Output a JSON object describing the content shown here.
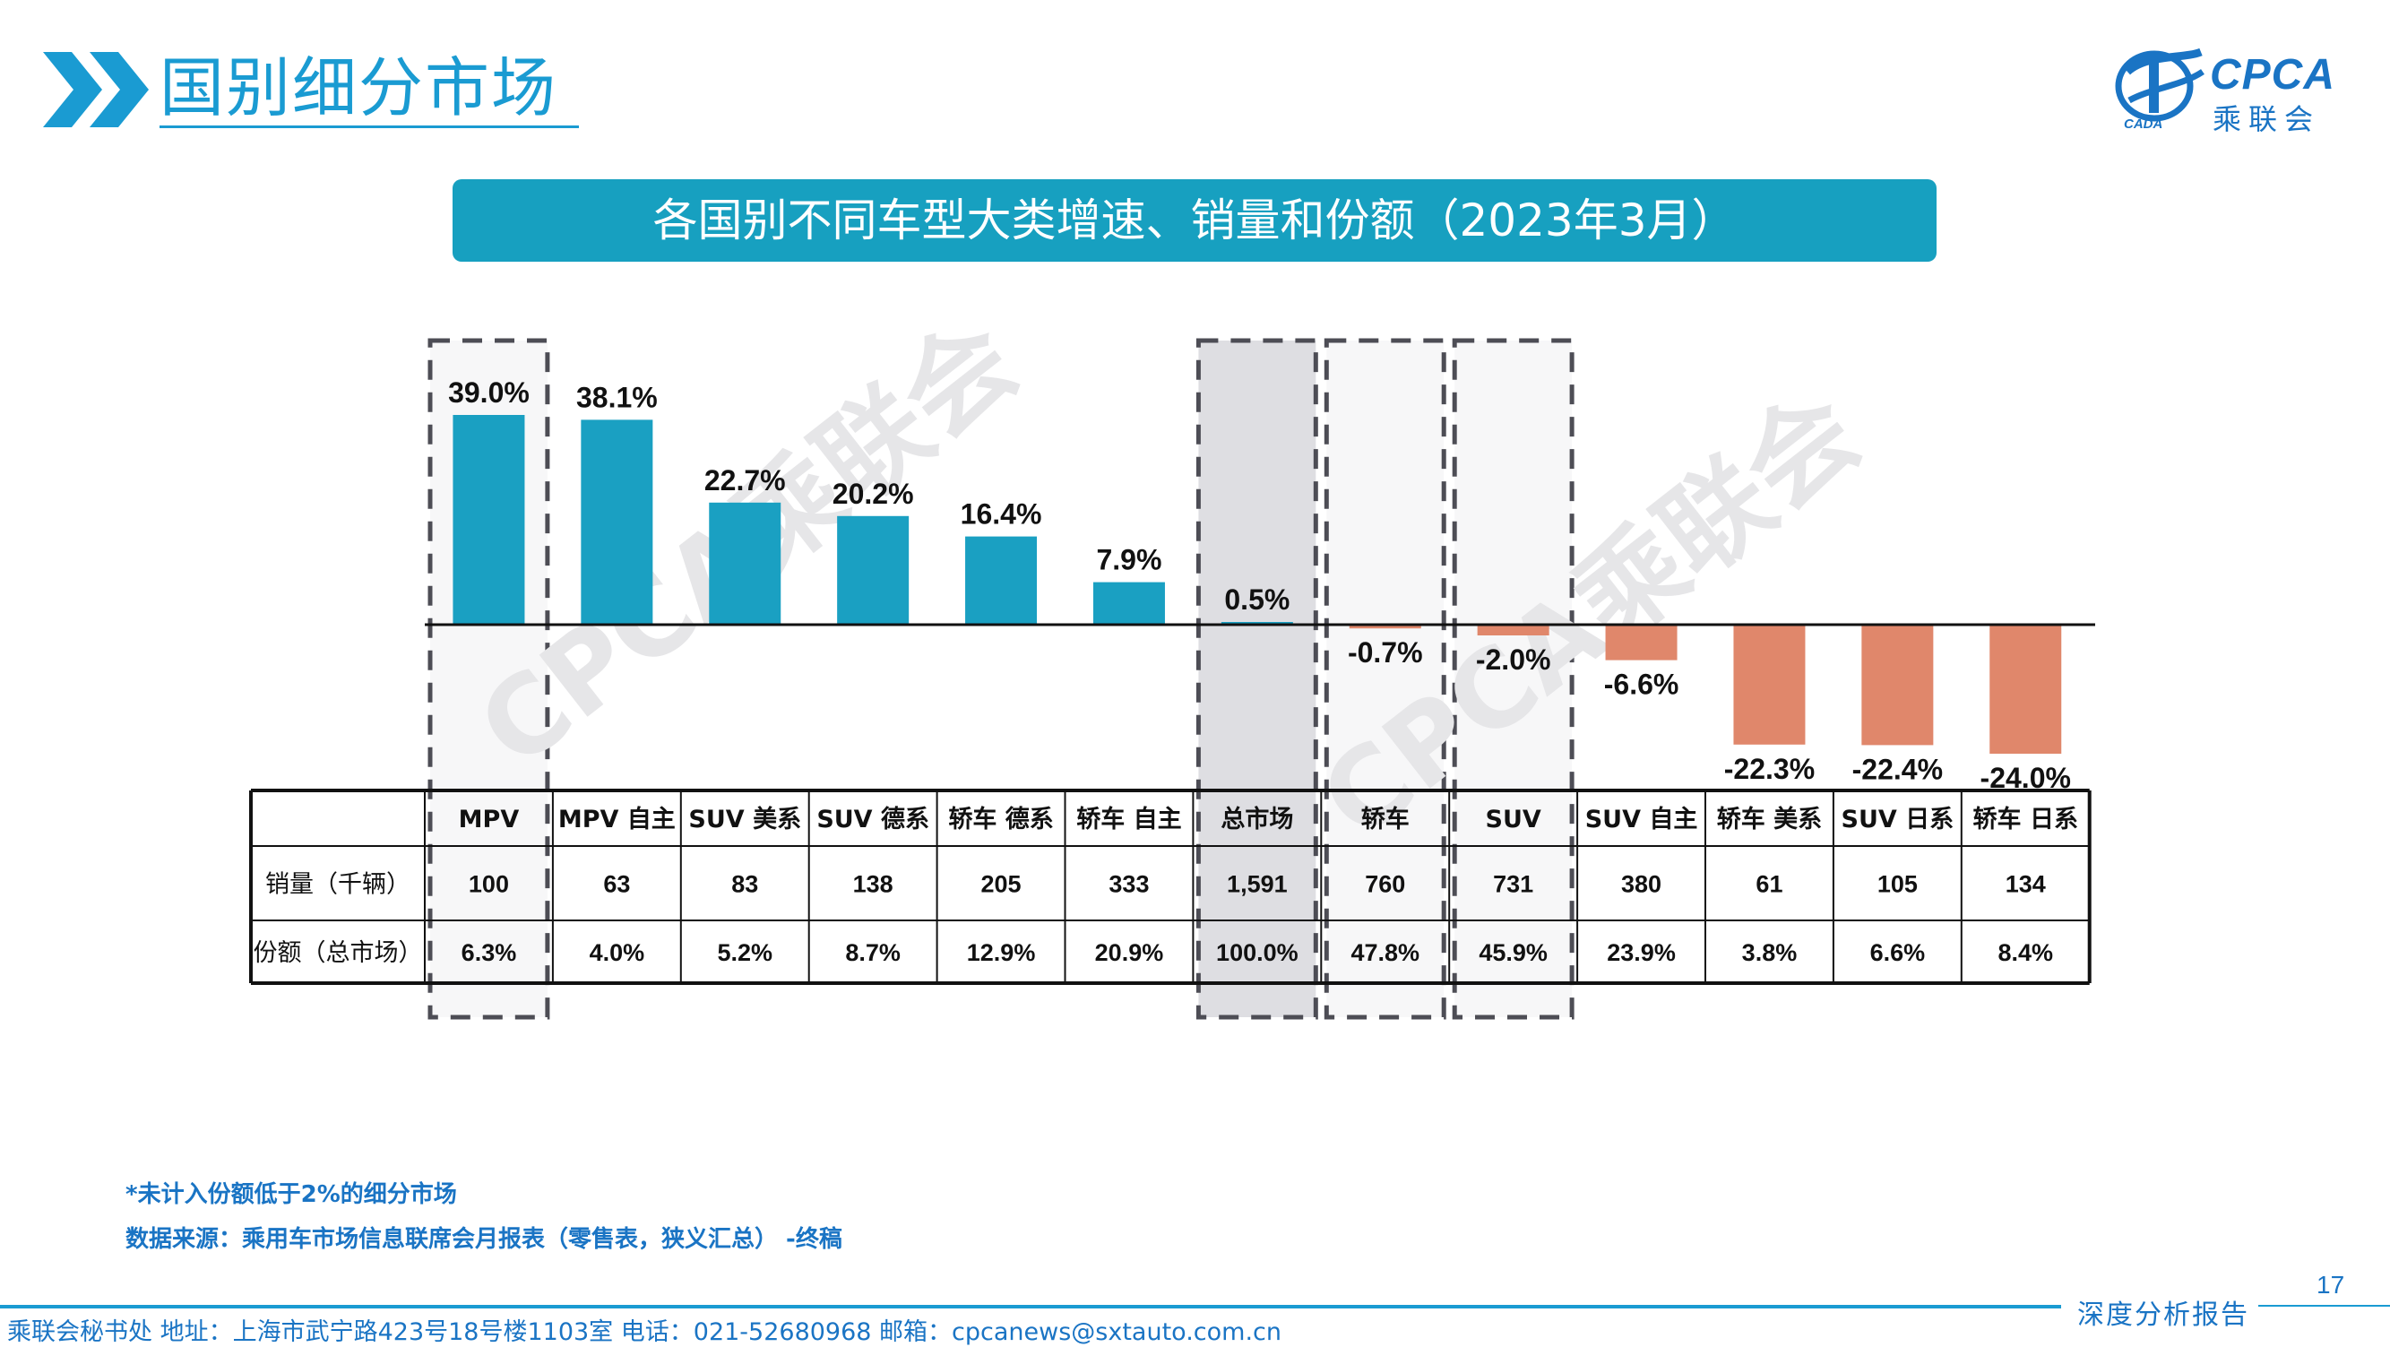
{
  "header": {
    "title": "国别细分市场",
    "logo_text": "CPCA",
    "logo_subtext": "乘联会",
    "logo_small": "CADA"
  },
  "banner": {
    "text": "各国别不同车型大类增速、销量和份额（2023年3月）"
  },
  "watermark": "CPCA乘联会",
  "colors": {
    "positive": "#1aa0c2",
    "negative": "#e0876b",
    "brand": "#1a9bd2",
    "highlight_fill": "#dedee2",
    "dashed_border": "#4d4d55"
  },
  "chart_data": {
    "type": "bar",
    "title": "各国别不同车型大类增速、销量和份额（2023年3月）",
    "categories": [
      "MPV",
      "MPV 自主",
      "SUV 美系",
      "SUV 德系",
      "轿车 德系",
      "轿车 自主",
      "总市场",
      "轿车",
      "SUV",
      "SUV 自主",
      "轿车 美系",
      "SUV 日系",
      "轿车 日系"
    ],
    "series": [
      {
        "values": [
          39.0,
          38.1,
          22.7,
          20.2,
          16.4,
          7.9,
          0.5,
          -0.7,
          -2.0,
          -6.6,
          -22.3,
          -22.4,
          -24.0
        ]
      }
    ],
    "value_labels": [
      "39.0%",
      "38.1%",
      "22.7%",
      "20.2%",
      "16.4%",
      "7.9%",
      "0.5%",
      "-0.7%",
      "-2.0%",
      "-6.6%",
      "-22.3%",
      "-22.4%",
      "-24.0%"
    ],
    "highlighted": [
      "MPV",
      "总市场",
      "轿车",
      "SUV"
    ],
    "grid": false,
    "legend": "none",
    "table": {
      "row_labels": [
        "销量（千辆）",
        "份额（总市场）"
      ],
      "sales": [
        "100",
        "63",
        "83",
        "138",
        "205",
        "333",
        "1,591",
        "760",
        "731",
        "380",
        "61",
        "105",
        "134"
      ],
      "share": [
        "6.3%",
        "4.0%",
        "5.2%",
        "8.7%",
        "12.9%",
        "20.9%",
        "100.0%",
        "47.8%",
        "45.9%",
        "23.9%",
        "3.8%",
        "6.6%",
        "8.4%"
      ]
    }
  },
  "notes": {
    "note1": "*未计入份额低于2%的细分市场",
    "note2": "数据来源：乘用车市场信息联席会月报表（零售表，狭义汇总） -终稿"
  },
  "footer": {
    "text": "乘联会秘书处   地址：上海市武宁路423号18号楼1103室  电话：021-52680968   邮箱：cpcanews@sxtauto.com.cn",
    "report_label": "深度分析报告",
    "page_number": "17"
  }
}
